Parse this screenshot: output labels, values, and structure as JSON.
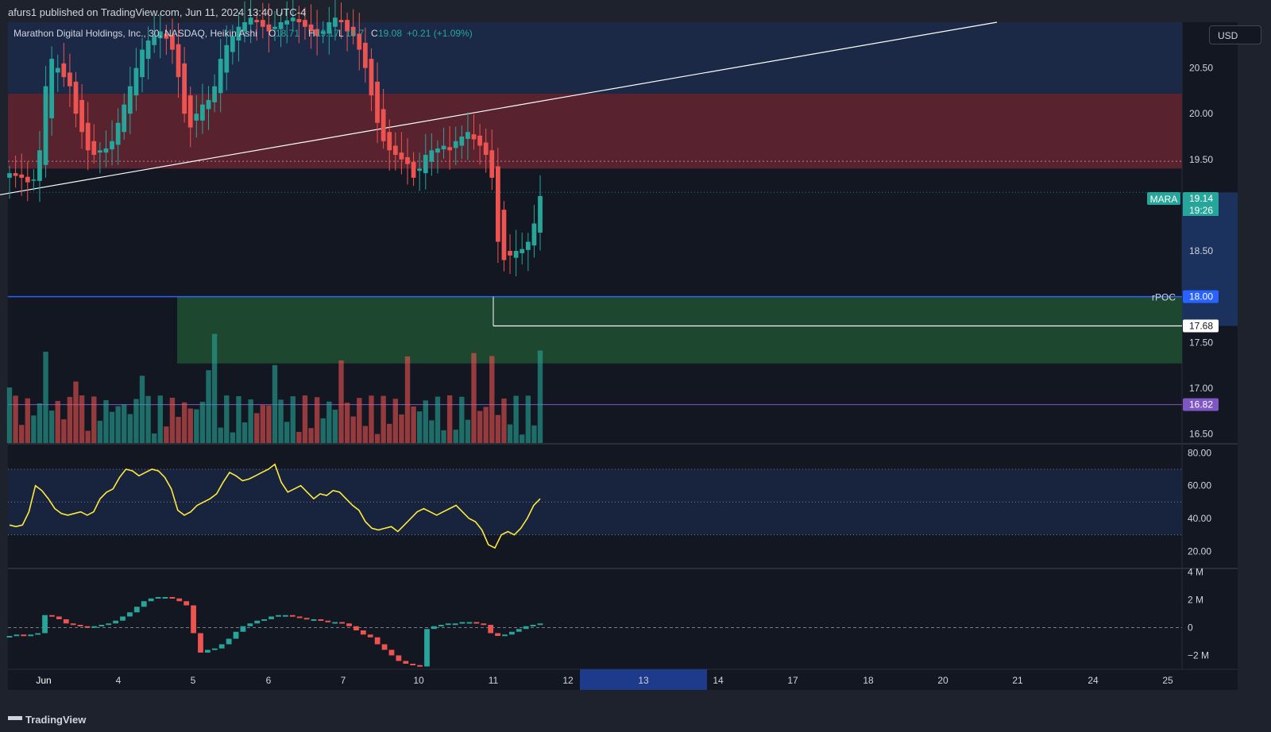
{
  "header": {
    "published": "afurs1 published on TradingView.com, Jun 11, 2024 13:40 UTC-4",
    "symbol_desc": "Marathon Digital Holdings, Inc., 30, NASDAQ, Heikin Ashi",
    "ohlc": {
      "o_label": "O",
      "o": "18.71",
      "h_label": "H",
      "h": "19.17",
      "l_label": "L",
      "l": "18.7",
      "c_label": "C",
      "c": "19.08",
      "change": "+0.21 (+1.09%)"
    }
  },
  "currency_button": "USD",
  "footer_brand": "TradingView",
  "colors": {
    "bg": "#131722",
    "panel": "#1e222d",
    "up": "#26a69a",
    "down": "#ef5350",
    "rpoc": "#2962ff",
    "avg": "#7e57c2",
    "rsi": "#ffeb3b",
    "supply_zone": "#5c2430",
    "demand_zone": "#1f4a30",
    "range_band": "#1b2a4a"
  },
  "chart_data": [
    {
      "type": "candlestick",
      "name": "MARA",
      "x_ticks": [
        "Jun",
        "4",
        "5",
        "6",
        "7",
        "10",
        "11",
        "12",
        "13",
        "14",
        "17",
        "18",
        "20",
        "21",
        "24",
        "25"
      ],
      "highlighted_tick": "13",
      "y_ticks": [
        "20.50",
        "20.00",
        "19.50",
        "18.50",
        "17.50",
        "17.00",
        "16.50"
      ],
      "ylim": [
        16.4,
        21.0
      ],
      "ohlc_close_path": [
        19.35,
        19.32,
        19.3,
        19.25,
        19.28,
        19.6,
        20.3,
        20.6,
        20.5,
        20.4,
        20.3,
        20.0,
        19.8,
        19.6,
        19.55,
        19.6,
        19.62,
        19.7,
        19.9,
        20.1,
        20.3,
        20.5,
        20.7,
        20.8,
        20.85,
        20.9,
        20.82,
        20.7,
        20.4,
        20.0,
        19.85,
        20.0,
        20.1,
        20.15,
        20.3,
        20.6,
        20.75,
        20.85,
        20.95,
        21.0,
        21.05,
        21.0,
        20.95,
        20.9,
        20.95,
        21.0,
        21.02,
        21.05,
        21.0,
        20.95,
        20.9,
        20.85,
        20.9,
        21.0,
        21.05,
        21.0,
        20.9,
        20.85,
        20.7,
        20.5,
        20.2,
        19.9,
        19.7,
        19.6,
        19.55,
        19.5,
        19.45,
        19.3,
        19.4,
        19.55,
        19.6,
        19.62,
        19.65,
        19.6,
        19.7,
        19.75,
        19.8,
        19.72,
        19.65,
        19.55,
        19.3,
        18.6,
        18.4,
        18.45,
        18.5,
        18.52,
        18.6,
        18.8,
        19.1
      ],
      "price_labels": [
        {
          "text": "MARA",
          "value": "19.14",
          "countdown": "19:26"
        },
        {
          "text": "rPOC",
          "value": "18.00"
        },
        {
          "text": "",
          "value": "17.68"
        },
        {
          "text": "",
          "value": "16.82"
        }
      ],
      "levels": {
        "rpoc": 18.0,
        "low_line": 17.68,
        "avg_line": 16.82,
        "dotted_level": 19.48,
        "last_price": 19.14
      },
      "zones": [
        {
          "name": "supply",
          "from": 19.4,
          "to": 20.22
        },
        {
          "name": "demand",
          "from": 17.27,
          "to": 18.0
        },
        {
          "name": "upper-range",
          "from": 20.22,
          "to": 21.1
        }
      ],
      "trendline": {
        "from": [
          0,
          19.14
        ],
        "to": [
          1255,
          21.1
        ]
      }
    },
    {
      "type": "line",
      "name": "RSI",
      "y_ticks": [
        "80.00",
        "60.00",
        "40.00",
        "20.00"
      ],
      "ylim": [
        10,
        85
      ],
      "band": [
        30,
        70
      ],
      "mid": 50,
      "values": [
        36,
        35,
        36,
        44,
        60,
        57,
        52,
        46,
        43,
        42,
        43,
        44,
        42,
        44,
        52,
        56,
        58,
        65,
        70,
        69,
        66,
        68,
        70,
        69,
        65,
        58,
        45,
        42,
        44,
        48,
        50,
        52,
        55,
        62,
        68,
        66,
        63,
        64,
        66,
        68,
        70,
        73,
        62,
        56,
        58,
        60,
        56,
        52,
        55,
        54,
        57,
        56,
        52,
        48,
        45,
        38,
        34,
        33,
        34,
        35,
        32,
        36,
        40,
        44,
        46,
        44,
        42,
        44,
        46,
        48,
        44,
        40,
        38,
        33,
        24,
        22,
        30,
        32,
        30,
        34,
        40,
        48,
        52
      ]
    },
    {
      "type": "bar",
      "name": "Volume delta",
      "y_ticks": [
        "4 M",
        "2 M",
        "0",
        "−2 M"
      ],
      "ylim": [
        -3.0,
        4.2
      ],
      "values": [
        -0.6,
        -0.5,
        -0.6,
        -0.5,
        -0.4,
        0.9,
        0.8,
        0.6,
        0.3,
        0.2,
        0.1,
        0.0,
        0.1,
        0.2,
        0.3,
        0.5,
        0.8,
        1.1,
        1.5,
        1.9,
        2.1,
        2.2,
        2.2,
        2.1,
        1.9,
        1.6,
        -0.4,
        -1.8,
        -1.6,
        -1.5,
        -1.2,
        -0.8,
        -0.3,
        0.1,
        0.3,
        0.5,
        0.6,
        0.8,
        0.9,
        0.9,
        0.8,
        0.7,
        0.6,
        0.6,
        0.5,
        0.4,
        0.4,
        0.3,
        0.1,
        -0.2,
        -0.5,
        -0.7,
        -1.2,
        -1.6,
        -2.0,
        -2.4,
        -2.6,
        -2.7,
        -2.8,
        -0.1,
        0.1,
        0.2,
        0.3,
        0.3,
        0.4,
        0.4,
        0.3,
        0.2,
        -0.4,
        -0.6,
        -0.5,
        -0.3,
        -0.1,
        0.1,
        0.2,
        0.3
      ]
    }
  ]
}
